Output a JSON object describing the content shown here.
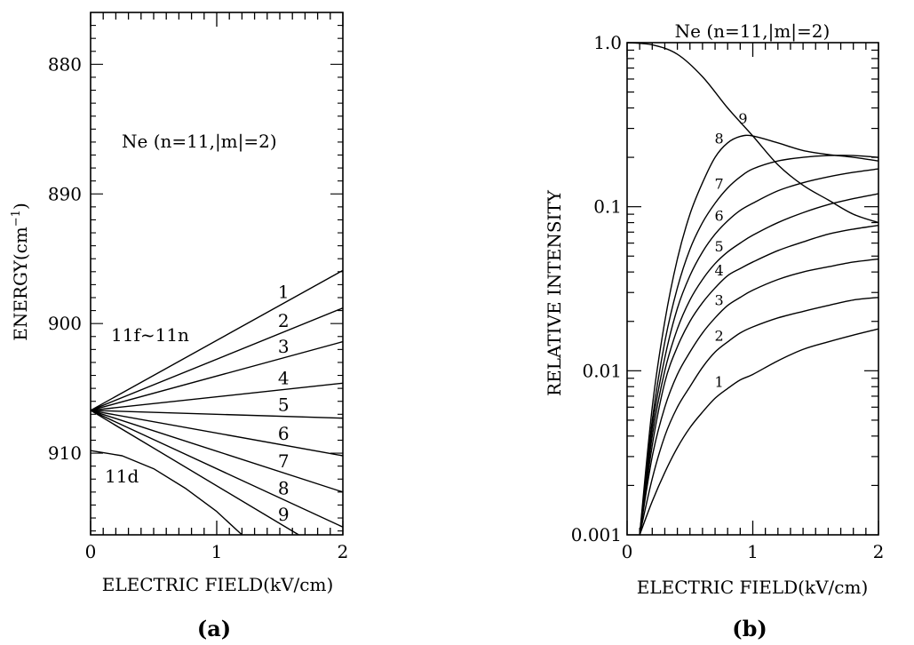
{
  "figure": {
    "panels": [
      {
        "caption": "(a)",
        "xlabel": "ELECTRIC FIELD(kV/cm)",
        "ylabel": "ENERGY(cm",
        "ylabel_sup": "−1",
        "ylabel_close": ")",
        "title": "Ne (n=11,|m|=2)",
        "group_labels": [
          "11f~11n",
          "11d"
        ]
      },
      {
        "caption": "(b)",
        "xlabel": "ELECTRIC FIELD(kV/cm)",
        "ylabel": "RELATIVE INTENSITY",
        "title": "Ne (n=11,|m|=2)"
      }
    ]
  },
  "chart_data": [
    {
      "type": "line",
      "title": "Ne (n=11,|m|=2)",
      "xlabel": "ELECTRIC FIELD(kV/cm)",
      "ylabel": "ENERGY(cm−1)",
      "xlim": [
        0,
        2
      ],
      "ylim": [
        876,
        916.3
      ],
      "y_inverted": true,
      "xticks": [
        0,
        1,
        2
      ],
      "xtick_labels": [
        "0",
        "1",
        "2"
      ],
      "yticks": [
        880,
        890,
        900,
        910
      ],
      "ytick_labels": [
        "880",
        "890",
        "900",
        "910"
      ],
      "series": [
        {
          "name": "1",
          "points": [
            [
              0,
              906.7
            ],
            [
              2,
              895.9
            ]
          ]
        },
        {
          "name": "2",
          "points": [
            [
              0,
              906.7
            ],
            [
              2,
              898.8
            ]
          ]
        },
        {
          "name": "3",
          "points": [
            [
              0,
              906.7
            ],
            [
              2,
              901.4
            ]
          ]
        },
        {
          "name": "4",
          "points": [
            [
              0,
              906.7
            ],
            [
              2,
              904.6
            ]
          ]
        },
        {
          "name": "5",
          "points": [
            [
              0,
              906.7
            ],
            [
              2,
              907.3
            ]
          ]
        },
        {
          "name": "6",
          "points": [
            [
              0,
              906.7
            ],
            [
              2,
              910.2
            ]
          ]
        },
        {
          "name": "7",
          "points": [
            [
              0,
              906.7
            ],
            [
              2,
              913.0
            ]
          ]
        },
        {
          "name": "8",
          "points": [
            [
              0,
              906.7
            ],
            [
              2,
              915.7
            ]
          ]
        },
        {
          "name": "9",
          "points": [
            [
              0,
              906.7
            ],
            [
              1.65,
              916.3
            ]
          ]
        },
        {
          "name": "11d",
          "points": [
            [
              0,
              909.8
            ],
            [
              0.25,
              910.2
            ],
            [
              0.5,
              911.2
            ],
            [
              0.75,
              912.7
            ],
            [
              1.0,
              914.5
            ],
            [
              1.2,
              916.3
            ]
          ]
        }
      ]
    },
    {
      "type": "line",
      "title": "Ne (n=11,|m|=2)",
      "xlabel": "ELECTRIC FIELD(kV/cm)",
      "ylabel": "RELATIVE INTENSITY",
      "yscale": "log",
      "xlim": [
        0,
        2
      ],
      "ylim": [
        0.001,
        1.0
      ],
      "xticks": [
        0,
        1,
        2
      ],
      "xtick_labels": [
        "0",
        "1",
        "2"
      ],
      "yticks": [
        0.001,
        0.01,
        0.1,
        1.0
      ],
      "ytick_labels": [
        "0.001",
        "0.01",
        "0.1",
        "1.0"
      ],
      "series": [
        {
          "name": "9",
          "x": [
            0,
            0.2,
            0.4,
            0.6,
            0.8,
            1.0,
            1.2,
            1.4,
            1.6,
            1.8,
            2.0
          ],
          "y": [
            1.0,
            0.97,
            0.85,
            0.62,
            0.4,
            0.27,
            0.18,
            0.135,
            0.11,
            0.09,
            0.08
          ]
        },
        {
          "name": "8",
          "x": [
            0.1,
            0.2,
            0.3,
            0.4,
            0.5,
            0.6,
            0.7,
            0.8,
            0.9,
            1.0,
            1.2,
            1.4,
            1.6,
            1.8,
            2.0
          ],
          "y": [
            0.001,
            0.006,
            0.02,
            0.048,
            0.09,
            0.14,
            0.2,
            0.245,
            0.268,
            0.27,
            0.245,
            0.22,
            0.208,
            0.2,
            0.19
          ]
        },
        {
          "name": "7",
          "x": [
            0.1,
            0.2,
            0.3,
            0.4,
            0.5,
            0.6,
            0.7,
            0.8,
            0.9,
            1.0,
            1.2,
            1.4,
            1.6,
            1.8,
            2.0
          ],
          "y": [
            0.001,
            0.005,
            0.015,
            0.032,
            0.055,
            0.08,
            0.105,
            0.13,
            0.152,
            0.17,
            0.19,
            0.2,
            0.205,
            0.205,
            0.2
          ]
        },
        {
          "name": "6",
          "x": [
            0.1,
            0.2,
            0.3,
            0.4,
            0.5,
            0.6,
            0.7,
            0.8,
            0.9,
            1.0,
            1.2,
            1.4,
            1.6,
            1.8,
            2.0
          ],
          "y": [
            0.001,
            0.0045,
            0.012,
            0.024,
            0.038,
            0.053,
            0.068,
            0.082,
            0.095,
            0.105,
            0.125,
            0.14,
            0.152,
            0.162,
            0.17
          ]
        },
        {
          "name": "5",
          "x": [
            0.1,
            0.2,
            0.3,
            0.4,
            0.5,
            0.6,
            0.7,
            0.8,
            0.9,
            1.0,
            1.2,
            1.4,
            1.6,
            1.8,
            2.0
          ],
          "y": [
            0.001,
            0.004,
            0.01,
            0.018,
            0.027,
            0.036,
            0.045,
            0.053,
            0.06,
            0.067,
            0.08,
            0.092,
            0.103,
            0.112,
            0.12
          ]
        },
        {
          "name": "4",
          "x": [
            0.1,
            0.2,
            0.3,
            0.4,
            0.5,
            0.6,
            0.7,
            0.8,
            0.9,
            1.0,
            1.2,
            1.4,
            1.6,
            1.8,
            2.0
          ],
          "y": [
            0.001,
            0.0035,
            0.0085,
            0.014,
            0.02,
            0.026,
            0.032,
            0.038,
            0.042,
            0.046,
            0.054,
            0.061,
            0.068,
            0.073,
            0.077
          ]
        },
        {
          "name": "3",
          "x": [
            0.1,
            0.2,
            0.3,
            0.4,
            0.5,
            0.6,
            0.7,
            0.8,
            0.9,
            1.0,
            1.2,
            1.4,
            1.6,
            1.8,
            2.0
          ],
          "y": [
            0.001,
            0.003,
            0.006,
            0.0095,
            0.013,
            0.017,
            0.021,
            0.025,
            0.028,
            0.031,
            0.036,
            0.04,
            0.043,
            0.046,
            0.048
          ]
        },
        {
          "name": "2",
          "x": [
            0.1,
            0.2,
            0.3,
            0.4,
            0.5,
            0.6,
            0.7,
            0.8,
            0.9,
            1.0,
            1.2,
            1.4,
            1.6,
            1.8,
            2.0
          ],
          "y": [
            0.001,
            0.0022,
            0.004,
            0.006,
            0.008,
            0.0105,
            0.013,
            0.015,
            0.017,
            0.0185,
            0.021,
            0.023,
            0.025,
            0.027,
            0.028
          ]
        },
        {
          "name": "1",
          "x": [
            0.1,
            0.2,
            0.3,
            0.4,
            0.5,
            0.6,
            0.7,
            0.8,
            0.9,
            1.0,
            1.2,
            1.4,
            1.6,
            1.8,
            2.0
          ],
          "y": [
            0.001,
            0.0016,
            0.0024,
            0.0034,
            0.0045,
            0.0056,
            0.0068,
            0.0078,
            0.0088,
            0.0095,
            0.0115,
            0.0135,
            0.015,
            0.0165,
            0.018
          ]
        }
      ]
    }
  ]
}
